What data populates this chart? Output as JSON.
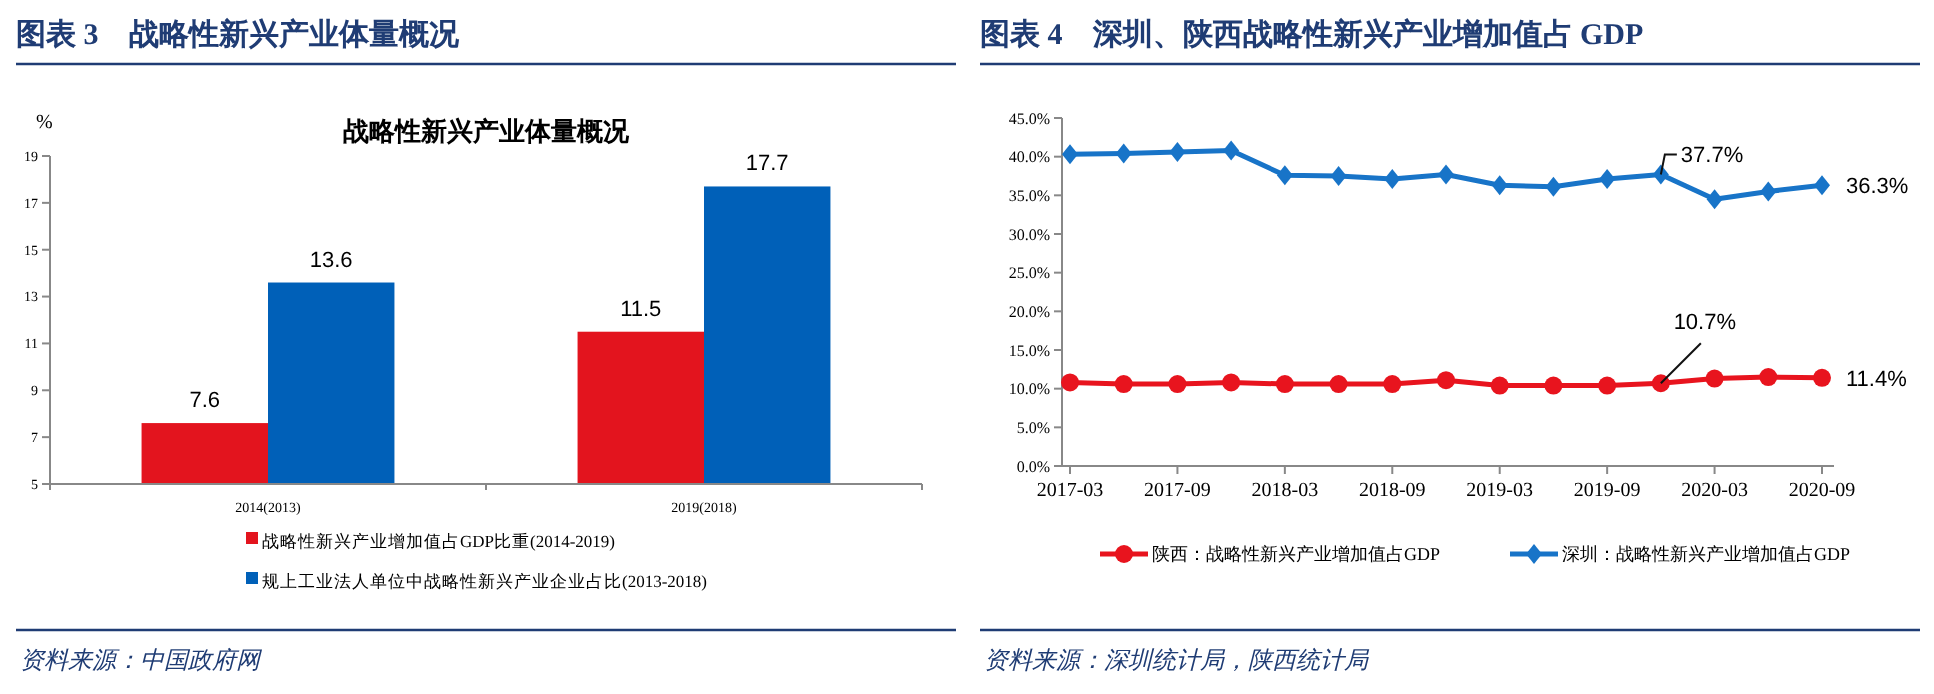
{
  "chart_data": [
    {
      "type": "bar",
      "title": "图表 3　战略性新兴产业体量概况",
      "subtitle": "战略性新兴产业体量概况",
      "ylabel": "%",
      "categories": [
        "2014(2013)",
        "2019(2018)"
      ],
      "series": [
        {
          "name": "战略性新兴产业增加值占GDP比重(2014-2019)",
          "color": "#e3141e",
          "values": [
            7.6,
            11.5
          ]
        },
        {
          "name": "规上工业法人单位中战略性新兴产业企业占比(2013-2018)",
          "color": "#0060b8",
          "values": [
            13.6,
            17.7
          ]
        }
      ],
      "ylim": [
        5,
        19
      ],
      "yticks": [
        5,
        7,
        9,
        11,
        13,
        15,
        17,
        19
      ],
      "grid": false,
      "data_labels": true,
      "legend": "bottom",
      "annotations": [
        "资料来源：中国政府网"
      ]
    },
    {
      "type": "line",
      "title": "图表 4　深圳、陕西战略性新兴产业增加值占 GDP",
      "categories": [
        "2017-03",
        null,
        "2017-09",
        null,
        "2018-03",
        null,
        "2018-09",
        null,
        "2019-03",
        null,
        "2019-09",
        null,
        "2020-03",
        null,
        "2020-09"
      ],
      "series": [
        {
          "name": "陕西：战略性新兴产业增加值占GDP",
          "color": "#e8141e",
          "marker": "circle",
          "values": [
            10.8,
            10.6,
            10.6,
            10.8,
            10.6,
            10.6,
            10.6,
            11.1,
            10.4,
            10.4,
            10.4,
            10.7,
            11.3,
            11.5,
            11.4
          ],
          "value_labels": [
            null,
            null,
            null,
            null,
            null,
            null,
            null,
            null,
            null,
            null,
            null,
            "10.7%",
            null,
            null,
            "11.4%"
          ]
        },
        {
          "name": "深圳：战略性新兴产业增加值占GDP",
          "color": "#1874c8",
          "marker": "diamond",
          "values": [
            40.3,
            40.4,
            40.6,
            40.8,
            37.6,
            37.5,
            37.1,
            37.7,
            36.3,
            36.1,
            37.1,
            37.7,
            34.5,
            35.5,
            36.3
          ],
          "value_labels": [
            null,
            null,
            null,
            null,
            null,
            null,
            null,
            null,
            null,
            null,
            null,
            "37.7%",
            null,
            null,
            "36.3%"
          ]
        }
      ],
      "ylim": [
        0,
        45
      ],
      "yticks": [
        {
          "value": 0,
          "label": "0.0%"
        },
        {
          "value": 5,
          "label": "5.0%"
        },
        {
          "value": 10,
          "label": "10.0%"
        },
        {
          "value": 15,
          "label": "15.0%"
        },
        {
          "value": 20,
          "label": "20.0%"
        },
        {
          "value": 25,
          "label": "25.0%"
        },
        {
          "value": 30,
          "label": "30.0%"
        },
        {
          "value": 35,
          "label": "35.0%"
        },
        {
          "value": 40,
          "label": "40.0%"
        },
        {
          "value": 45,
          "label": "45.0%"
        }
      ],
      "grid": false,
      "legend": "bottom",
      "annotations": [
        "资料来源：深圳统计局，陕西统计局"
      ]
    }
  ]
}
